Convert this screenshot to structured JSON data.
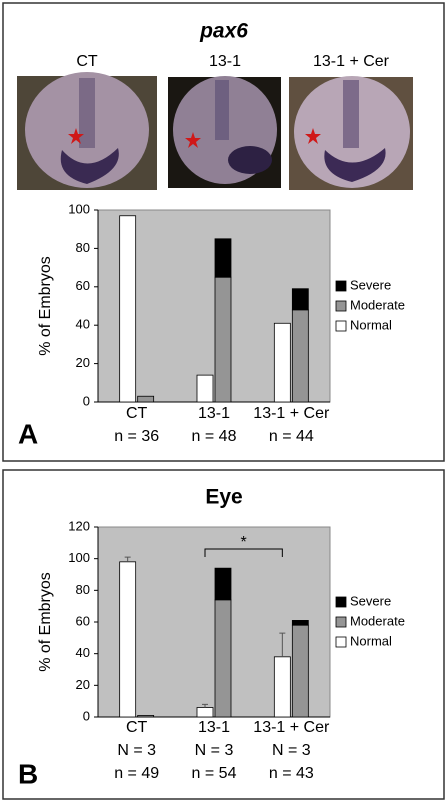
{
  "chart_data": [
    {
      "type": "bar",
      "panel_label": "A",
      "title": "pax6",
      "title_italic": true,
      "image_labels": [
        "CT",
        "13-1",
        "13-1 + Cer"
      ],
      "y_label": "% of Embryos",
      "categories": [
        "CT",
        "13-1",
        "13-1 + Cer"
      ],
      "category_sublabels": [
        [
          "n = 36"
        ],
        [
          "n = 48"
        ],
        [
          "n = 44"
        ]
      ],
      "series": [
        {
          "name": "Severe",
          "color": "#000000",
          "stack": 1,
          "values": [
            0,
            20,
            11
          ]
        },
        {
          "name": "Moderate",
          "color": "#959595",
          "stack": 1,
          "values": [
            3,
            65,
            48
          ]
        },
        {
          "name": "Normal",
          "color": "#ffffff",
          "stack": 0,
          "values": [
            97,
            14,
            41
          ]
        }
      ],
      "ylim": [
        0,
        100
      ],
      "yticks": [
        0,
        20,
        40,
        60,
        80,
        100
      ],
      "legend": "right"
    },
    {
      "type": "bar",
      "panel_label": "B",
      "title": "Eye",
      "title_italic": false,
      "y_label": "% of Embryos",
      "categories": [
        "CT",
        "13-1",
        "13-1 + Cer"
      ],
      "category_sublabels": [
        [
          "N = 3",
          "n = 49"
        ],
        [
          "N = 3",
          "n = 54"
        ],
        [
          "N = 3",
          "n = 43"
        ]
      ],
      "series": [
        {
          "name": "Severe",
          "color": "#000000",
          "stack": 1,
          "values": [
            0,
            20,
            3
          ]
        },
        {
          "name": "Moderate",
          "color": "#959595",
          "stack": 1,
          "values": [
            1,
            74,
            58
          ]
        },
        {
          "name": "Normal",
          "color": "#ffffff",
          "stack": 0,
          "values": [
            98,
            6,
            38
          ],
          "errors": [
            3,
            2,
            15
          ]
        }
      ],
      "significance": {
        "label": "*",
        "between": [
          1,
          2
        ]
      },
      "ylim": [
        0,
        120
      ],
      "yticks": [
        0,
        20,
        40,
        60,
        80,
        100,
        120
      ],
      "legend": "right"
    }
  ]
}
